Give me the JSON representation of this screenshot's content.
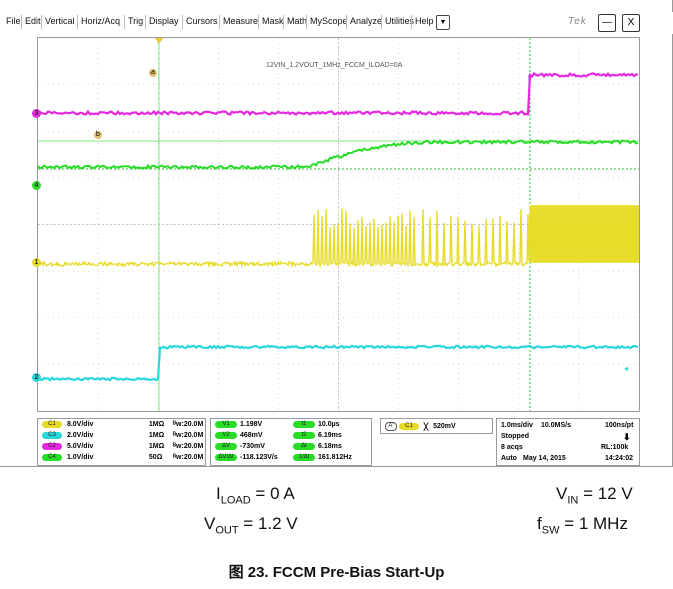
{
  "menu": {
    "items": [
      "File",
      "Edit",
      "Vertical",
      "Horiz/Acq",
      "Trig",
      "Display",
      "Cursors",
      "Measure",
      "Mask",
      "Math",
      "MyScope",
      "Analyze",
      "Utilities",
      "Help"
    ],
    "dropdown_icon": "chevron-down-icon",
    "brand": "Tek",
    "minimize": "—",
    "close": "X"
  },
  "scope": {
    "caption": "12VIN_1.2VOUT_1MHz_FCCM_ILOAD=0A",
    "markers": {
      "a": "a",
      "b": "b"
    },
    "channel_markers": {
      "ch3": "3",
      "ch4": "4",
      "ch1": "1",
      "ch2": "2"
    },
    "colors": {
      "ch1": "#e6dc28",
      "ch2": "#28d7dc",
      "ch3": "#e628e1",
      "ch4": "#28dc28"
    }
  },
  "channels": [
    {
      "label": "C1",
      "scale": "8.0V/div",
      "imp": "1MΩ",
      "bw": "20.0M"
    },
    {
      "label": "C3",
      "scale": "2.0V/div",
      "imp": "1MΩ",
      "bw": "20.0M"
    },
    {
      "label": "C2",
      "scale": "5.0V/div",
      "imp": "1MΩ",
      "bw": "20.0M"
    },
    {
      "label": "C4",
      "scale": "1.0V/div",
      "imp": "50Ω",
      "bw": "20.0M"
    }
  ],
  "cursors": {
    "v1": "1.198V",
    "v2": "468mV",
    "dv": "-730mV",
    "dvdt": "-118.123V/s",
    "t1": "10.0µs",
    "t2": "6.19ms",
    "dt": "6.18ms",
    "inv": "161.812Hz",
    "labels": {
      "v1": "V1",
      "v2": "V2",
      "dv": "ΔV",
      "dvdt": "ΔV/Δt",
      "t1": "t1",
      "t2": "t2",
      "dt": "Δt",
      "inv": "1/Δt"
    }
  },
  "trigger": {
    "label": "A'",
    "channel": "C1",
    "slope": "╳",
    "level": "520mV"
  },
  "acquisition": {
    "timebase": "1.0ms/div",
    "sample": "10.0MS/s",
    "resolution": "100ns/pt",
    "state": "Stopped",
    "acqs": "8 acqs",
    "rl": "RL:100k",
    "mode": "Auto",
    "date": "May 14, 2015",
    "time": "14:24:02",
    "arrow": "⬇"
  },
  "conditions": {
    "iload": "I",
    "iload_sub": "LOAD",
    "iload_val": " = 0 A",
    "vout": "V",
    "vout_sub": "OUT",
    "vout_val": " = 1.2 V",
    "vin": "V",
    "vin_sub": "IN",
    "vin_val": " = 12 V",
    "fsw": "f",
    "fsw_sub": "SW",
    "fsw_val": " = 1 MHz"
  },
  "figure": {
    "title": "图 23. FCCM Pre-Bias Start-Up"
  }
}
